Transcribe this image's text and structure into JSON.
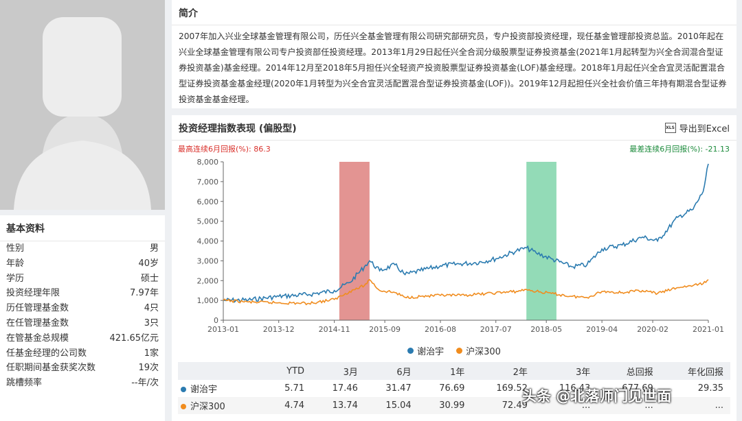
{
  "basic": {
    "title": "基本资料",
    "rows": [
      {
        "k": "性别",
        "v": "男"
      },
      {
        "k": "年龄",
        "v": "40岁"
      },
      {
        "k": "学历",
        "v": "硕士"
      },
      {
        "k": "投资经理年限",
        "v": "7.97年"
      },
      {
        "k": "历任管理基金数",
        "v": "4只"
      },
      {
        "k": "在任管理基金数",
        "v": "3只"
      },
      {
        "k": "在管基金总规模",
        "v": "421.65亿元"
      },
      {
        "k": "任基金经理的公司数",
        "v": "1家"
      },
      {
        "k": "任职期间基金获奖次数",
        "v": "19次"
      },
      {
        "k": "跳槽频率",
        "v": "--年/次"
      }
    ]
  },
  "intro": {
    "title": "简介",
    "text": "2007年加入兴业全球基金管理有限公司，历任兴全基金管理有限公司研究部研究员，专户投资部投资经理，现任基金管理部投资总监。2010年起在兴业全球基金管理有限公司专户投资部任投资经理。2013年1月29日起任兴全合润分级股票型证券投资基金(2021年1月起转型为兴全合润混合型证券投资基金)基金经理。2014年12月至2018年5月担任兴全轻资产投资股票型证券投资基金(LOF)基金经理。2018年1月起任兴全合宜灵活配置混合型证券投资基金基金经理(2020年1月转型为兴全合宜灵活配置混合型证券投资基金(LOF))。2019年12月起担任兴全社会价值三年持有期混合型证券投资基金基金经理。"
  },
  "chart_panel": {
    "title": "投资经理指数表现 (偏股型)",
    "export_label": "导出到Excel",
    "best_label": "最高连续6月回报(%):  86.3",
    "worst_label": "最差连续6月回报(%):  -21.13"
  },
  "colors": {
    "manager": "#2b7bb0",
    "hs300": "#f08c1e",
    "best_band": "#d9706e",
    "worst_band": "#6fcf9f"
  },
  "chart_data": {
    "type": "line",
    "ylim": [
      0,
      8000
    ],
    "yticks": [
      "0",
      "1,000",
      "2,000",
      "3,000",
      "4,000",
      "5,000",
      "6,000",
      "7,000",
      "8,000"
    ],
    "xticks": [
      "2013-01",
      "2013-12",
      "2014-11",
      "2015-09",
      "2016-08",
      "2017-07",
      "2018-05",
      "2019-04",
      "2020-02",
      "2021-01"
    ],
    "highlight_best": [
      "2014-12",
      "2015-06"
    ],
    "highlight_worst": [
      "2018-01",
      "2018-07"
    ],
    "series": [
      {
        "name": "谢治宇",
        "points": [
          [
            "2013-01",
            1000
          ],
          [
            "2013-06",
            1020
          ],
          [
            "2013-12",
            1200
          ],
          [
            "2014-06",
            1300
          ],
          [
            "2014-11",
            1500
          ],
          [
            "2015-02",
            1900
          ],
          [
            "2015-05",
            2700
          ],
          [
            "2015-06",
            3000
          ],
          [
            "2015-08",
            2500
          ],
          [
            "2015-11",
            2800
          ],
          [
            "2016-01",
            2300
          ],
          [
            "2016-04",
            2500
          ],
          [
            "2016-08",
            2750
          ],
          [
            "2016-12",
            2850
          ],
          [
            "2017-03",
            2900
          ],
          [
            "2017-07",
            3100
          ],
          [
            "2017-11",
            3500
          ],
          [
            "2018-01",
            3650
          ],
          [
            "2018-03",
            3400
          ],
          [
            "2018-06",
            3100
          ],
          [
            "2018-10",
            2700
          ],
          [
            "2019-01",
            2800
          ],
          [
            "2019-04",
            3600
          ],
          [
            "2019-08",
            3800
          ],
          [
            "2019-12",
            4200
          ],
          [
            "2020-03",
            4000
          ],
          [
            "2020-07",
            5200
          ],
          [
            "2020-10",
            5600
          ],
          [
            "2020-12",
            6500
          ],
          [
            "2021-01",
            7900
          ]
        ]
      },
      {
        "name": "沪深300",
        "points": [
          [
            "2013-01",
            1000
          ],
          [
            "2013-06",
            920
          ],
          [
            "2013-12",
            880
          ],
          [
            "2014-06",
            850
          ],
          [
            "2014-11",
            1050
          ],
          [
            "2015-02",
            1450
          ],
          [
            "2015-05",
            1750
          ],
          [
            "2015-06",
            2050
          ],
          [
            "2015-08",
            1500
          ],
          [
            "2015-11",
            1400
          ],
          [
            "2016-01",
            1150
          ],
          [
            "2016-04",
            1200
          ],
          [
            "2016-08",
            1250
          ],
          [
            "2016-12",
            1250
          ],
          [
            "2017-03",
            1300
          ],
          [
            "2017-07",
            1380
          ],
          [
            "2017-11",
            1450
          ],
          [
            "2018-01",
            1550
          ],
          [
            "2018-03",
            1450
          ],
          [
            "2018-06",
            1350
          ],
          [
            "2018-10",
            1200
          ],
          [
            "2019-01",
            1150
          ],
          [
            "2019-04",
            1450
          ],
          [
            "2019-08",
            1400
          ],
          [
            "2019-12",
            1500
          ],
          [
            "2020-03",
            1350
          ],
          [
            "2020-07",
            1650
          ],
          [
            "2020-10",
            1750
          ],
          [
            "2020-12",
            1850
          ],
          [
            "2021-01",
            2050
          ]
        ]
      }
    ]
  },
  "perf_table": {
    "headers": [
      "",
      "YTD",
      "3月",
      "6月",
      "1年",
      "2年",
      "3年",
      "总回报",
      "年化回报"
    ],
    "rows": [
      {
        "name": "谢治宇",
        "values": [
          "5.71",
          "17.46",
          "31.47",
          "76.69",
          "169.52",
          "116.43",
          "677.69",
          "29.35"
        ]
      },
      {
        "name": "沪深300",
        "values": [
          "4.74",
          "13.74",
          "15.04",
          "30.99",
          "72.49",
          "...",
          "...",
          "..."
        ]
      }
    ]
  },
  "watermark": "头条 @北落师门见世面"
}
